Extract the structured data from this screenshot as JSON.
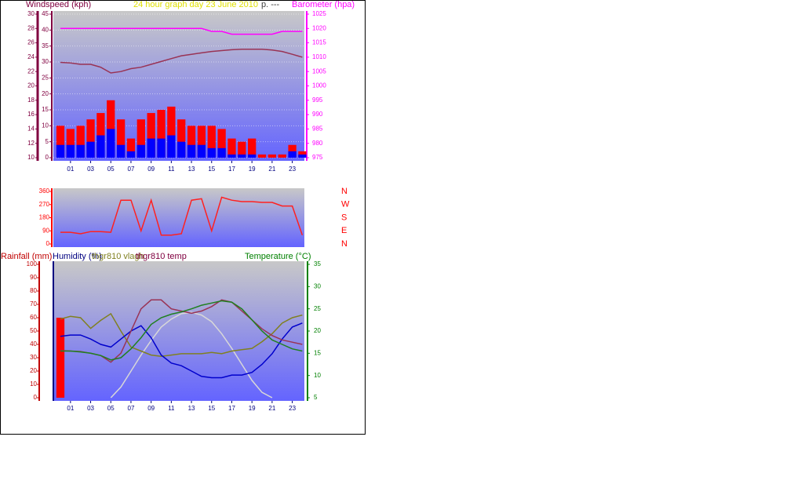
{
  "chart_data": [
    {
      "type": "bar",
      "title": "24 hour graph day   23 June 2010",
      "ylabel": "Windspeed (kph)",
      "y2label": "Barometer (hpa)",
      "annotations": [
        "p. ---"
      ],
      "x": [
        0,
        1,
        2,
        3,
        4,
        5,
        6,
        7,
        8,
        9,
        10,
        11,
        12,
        13,
        14,
        15,
        16,
        17,
        18,
        19,
        20,
        21,
        22,
        23,
        24
      ],
      "xlim": [
        -0.7,
        24.2
      ],
      "xticks": [
        {
          "value": 1,
          "label": "01"
        },
        {
          "value": 3,
          "label": "03"
        },
        {
          "value": 5,
          "label": "05"
        },
        {
          "value": 7,
          "label": "07"
        },
        {
          "value": 9,
          "label": "09"
        },
        {
          "value": 11,
          "label": "11"
        },
        {
          "value": 13,
          "label": "13"
        },
        {
          "value": 15,
          "label": "15"
        },
        {
          "value": 17,
          "label": "17"
        },
        {
          "value": 19,
          "label": "19"
        },
        {
          "value": 21,
          "label": "21"
        },
        {
          "value": 23,
          "label": "23"
        }
      ],
      "ylim": [
        0,
        45
      ],
      "yticks": [
        0,
        5,
        10,
        15,
        20,
        25,
        30,
        35,
        40,
        45
      ],
      "y3lim": [
        10,
        30
      ],
      "y3ticks": [
        10,
        12,
        14,
        16,
        18,
        20,
        22,
        24,
        26,
        28,
        30
      ],
      "y2lim": [
        975,
        1025
      ],
      "y2ticks": [
        975,
        980,
        985,
        990,
        995,
        1000,
        1005,
        1010,
        1015,
        1020,
        1025
      ],
      "grid": true,
      "series": [
        {
          "type": "bar",
          "color": "#ff0000",
          "values": [
            10,
            9,
            10,
            12,
            14,
            18,
            12,
            6,
            12,
            14,
            15,
            16,
            12,
            10,
            10,
            10,
            9,
            6,
            5,
            6,
            1,
            1,
            1,
            4,
            2
          ]
        },
        {
          "type": "bar",
          "color": "#0000ff",
          "values": [
            4,
            4,
            4,
            5,
            7,
            9,
            4,
            2,
            4,
            6,
            6,
            7,
            5,
            4,
            4,
            3,
            3,
            1,
            1,
            1,
            0,
            0,
            0,
            2,
            1
          ]
        },
        {
          "type": "line",
          "axis": "y2",
          "color": "#ff00ff",
          "values": [
            1020,
            1020,
            1020,
            1020,
            1020,
            1020,
            1020,
            1020,
            1020,
            1020,
            1020,
            1020,
            1020,
            1020,
            1020,
            1019,
            1019,
            1018,
            1018,
            1018,
            1018,
            1018,
            1019,
            1019,
            1019
          ]
        },
        {
          "type": "line",
          "axis": "y2",
          "color": "#993355",
          "values": [
            1008.2,
            1008,
            1007.5,
            1007.5,
            1006.5,
            1004.5,
            1005,
            1006,
            1006.5,
            1007.5,
            1008.5,
            1009.5,
            1010.5,
            1011,
            1011.5,
            1012,
            1012.3,
            1012.6,
            1012.8,
            1012.8,
            1012.8,
            1012.5,
            1012,
            1011,
            1010
          ]
        }
      ]
    },
    {
      "type": "line",
      "x": [
        0,
        1,
        2,
        3,
        4,
        5,
        6,
        7,
        8,
        9,
        10,
        11,
        12,
        13,
        14,
        15,
        16,
        17,
        18,
        19,
        20,
        21,
        22,
        23,
        24
      ],
      "xlim": [
        -0.7,
        24.2
      ],
      "ylim": [
        0,
        360
      ],
      "yticks": [
        0,
        90,
        180,
        270,
        360
      ],
      "y2lim": [
        0,
        360
      ],
      "y2ticks": [
        {
          "value": 360,
          "label": "N"
        },
        {
          "value": 270,
          "label": "W"
        },
        {
          "value": 180,
          "label": "S"
        },
        {
          "value": 90,
          "label": "E"
        },
        {
          "value": 0,
          "label": "N"
        }
      ],
      "series": [
        {
          "type": "line",
          "color": "#ff2020",
          "values": [
            80,
            80,
            70,
            85,
            85,
            80,
            300,
            300,
            90,
            300,
            60,
            60,
            70,
            300,
            310,
            90,
            320,
            300,
            290,
            290,
            285,
            285,
            260,
            260,
            60
          ]
        }
      ]
    },
    {
      "type": "line",
      "ylabel": "Rainfall (mm)",
      "annotations": [
        "Humidity (%)",
        "thgr810 vlagh",
        "thgr810 temp"
      ],
      "y2label": "Temperature (°C)",
      "x": [
        0,
        1,
        2,
        3,
        4,
        5,
        6,
        7,
        8,
        9,
        10,
        11,
        12,
        13,
        14,
        15,
        16,
        17,
        18,
        19,
        20,
        21,
        22,
        23,
        24
      ],
      "xlim": [
        -0.7,
        24.2
      ],
      "xticks": [
        {
          "value": 1,
          "label": "01"
        },
        {
          "value": 3,
          "label": "03"
        },
        {
          "value": 5,
          "label": "05"
        },
        {
          "value": 7,
          "label": "07"
        },
        {
          "value": 9,
          "label": "09"
        },
        {
          "value": 11,
          "label": "11"
        },
        {
          "value": 13,
          "label": "13"
        },
        {
          "value": 15,
          "label": "15"
        },
        {
          "value": 17,
          "label": "17"
        },
        {
          "value": 19,
          "label": "19"
        },
        {
          "value": 21,
          "label": "21"
        },
        {
          "value": 23,
          "label": "23"
        }
      ],
      "ylim": [
        0,
        100
      ],
      "yticks": [
        0,
        10,
        20,
        30,
        40,
        50,
        60,
        70,
        80,
        90,
        100
      ],
      "y2lim": [
        5,
        35
      ],
      "y2ticks": [
        5,
        10,
        15,
        20,
        25,
        30,
        35
      ],
      "series": [
        {
          "type": "bar",
          "color": "#ff0000",
          "values": [
            60,
            null,
            null,
            null,
            null,
            null,
            null,
            null,
            null,
            null,
            null,
            null,
            null,
            null,
            null,
            null,
            null,
            null,
            null,
            null,
            null,
            null,
            null,
            null,
            null
          ]
        },
        {
          "type": "line",
          "color": "#d8d8d8",
          "values": [
            null,
            null,
            null,
            null,
            null,
            0,
            8,
            20,
            32,
            43,
            53,
            59,
            63,
            64,
            62,
            57,
            48,
            37,
            25,
            13,
            4,
            0,
            null,
            null,
            null
          ]
        },
        {
          "type": "line",
          "color": "#808020",
          "values": [
            59,
            61,
            60,
            52,
            58,
            63,
            50,
            38,
            35,
            32,
            31,
            32,
            33,
            33,
            33,
            34,
            33,
            35,
            36,
            37,
            42,
            48,
            56,
            60,
            62
          ]
        },
        {
          "type": "line",
          "color": "#0000cc",
          "values": [
            46,
            47,
            47,
            44,
            40,
            38,
            44,
            50,
            54,
            45,
            32,
            26,
            24,
            20,
            16,
            15,
            15,
            17,
            17,
            19,
            25,
            33,
            44,
            53,
            56
          ]
        },
        {
          "type": "line",
          "axis": "y2",
          "color": "#993355",
          "values": [
            15.6,
            15.5,
            15.4,
            15,
            14.5,
            13,
            15,
            20,
            25,
            27,
            27,
            25,
            24.5,
            24,
            24.5,
            25.5,
            27,
            26.5,
            24.5,
            22.5,
            20.5,
            19,
            18,
            17.5,
            17
          ]
        },
        {
          "type": "line",
          "axis": "y2",
          "color": "#208020",
          "values": [
            15.5,
            15.5,
            15.3,
            15,
            14.5,
            13.5,
            14,
            16,
            18.5,
            21.5,
            23,
            23.8,
            24.3,
            25,
            25.8,
            26.3,
            26.8,
            26.5,
            25,
            22.5,
            20,
            18,
            17,
            16,
            15.5
          ]
        }
      ]
    }
  ]
}
